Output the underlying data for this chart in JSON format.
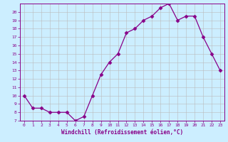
{
  "x": [
    0,
    1,
    2,
    3,
    4,
    5,
    6,
    7,
    8,
    9,
    10,
    11,
    12,
    13,
    14,
    15,
    16,
    17,
    18,
    19,
    20,
    21,
    22,
    23
  ],
  "y": [
    10.0,
    8.5,
    8.5,
    8.0,
    8.0,
    8.0,
    7.0,
    7.5,
    10.0,
    12.5,
    14.0,
    15.0,
    17.5,
    18.0,
    19.0,
    19.5,
    20.5,
    21.0,
    19.0,
    19.5,
    19.5,
    17.0,
    15.0,
    13.0
  ],
  "line_color": "#880088",
  "marker": "D",
  "marker_size": 2.5,
  "bg_color": "#cceeff",
  "grid_color": "#bbbbbb",
  "xlabel": "Windchill (Refroidissement éolien,°C)",
  "xlabel_color": "#880088",
  "tick_color": "#880088",
  "ylim": [
    7,
    21
  ],
  "xlim": [
    -0.5,
    23.5
  ],
  "yticks": [
    7,
    8,
    9,
    10,
    11,
    12,
    13,
    14,
    15,
    16,
    17,
    18,
    19,
    20
  ],
  "xticks": [
    0,
    1,
    2,
    3,
    4,
    5,
    6,
    7,
    8,
    9,
    10,
    11,
    12,
    13,
    14,
    15,
    16,
    17,
    18,
    19,
    20,
    21,
    22,
    23
  ]
}
